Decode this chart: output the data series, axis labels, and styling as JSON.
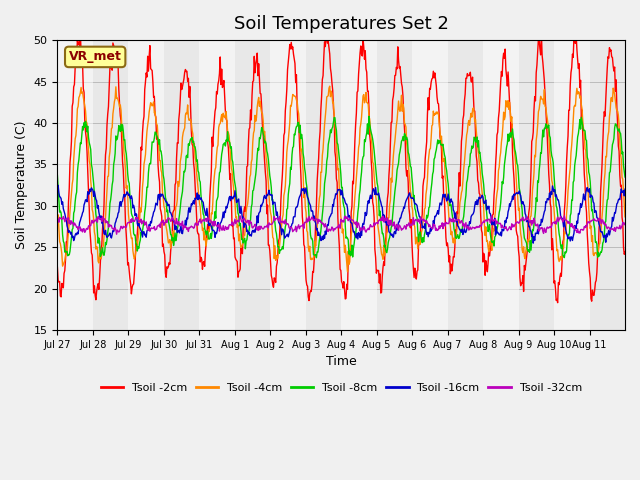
{
  "title": "Soil Temperatures Set 2",
  "xlabel": "Time",
  "ylabel": "Soil Temperature (C)",
  "ylim": [
    15,
    50
  ],
  "annotation": "VR_met",
  "x_tick_labels": [
    "Jul 27",
    "Jul 28",
    "Jul 29",
    "Jul 30",
    "Jul 31",
    "Aug 1",
    "Aug 2",
    "Aug 3",
    "Aug 4",
    "Aug 5",
    "Aug 6",
    "Aug 7",
    "Aug 8",
    "Aug 9",
    "Aug 10",
    "Aug 11"
  ],
  "n_days": 16,
  "series_names": [
    "Tsoil -2cm",
    "Tsoil -4cm",
    "Tsoil -8cm",
    "Tsoil -16cm",
    "Tsoil -32cm"
  ],
  "series_colors": [
    "#FF0000",
    "#FF8800",
    "#00CC00",
    "#0000CC",
    "#BB00BB"
  ],
  "series_amplitudes": [
    13.5,
    9.0,
    7.0,
    2.5,
    0.6
  ],
  "series_means": [
    34.5,
    33.5,
    32.0,
    29.0,
    27.8
  ],
  "series_phases": [
    0.0,
    0.08,
    0.18,
    0.35,
    0.6
  ],
  "series_noises": [
    0.8,
    0.5,
    0.4,
    0.3,
    0.2
  ],
  "yticks": [
    15,
    20,
    25,
    30,
    35,
    40,
    45,
    50
  ],
  "fig_facecolor": "#F0F0F0",
  "ax_facecolor": "#E8E8E8",
  "band_color": "#FFFFFF",
  "annotation_facecolor": "#FFFF99",
  "annotation_edgecolor": "#8B6914",
  "annotation_textcolor": "#8B0000"
}
